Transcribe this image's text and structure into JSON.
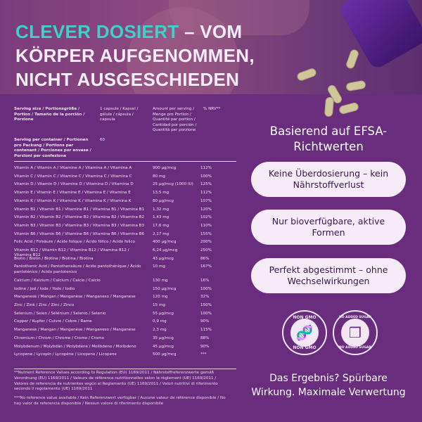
{
  "header": {
    "accent": "CLEVER DOSIERT",
    "line1_rest": " – VOM",
    "line2": "KÖRPER AUFGENOMMEN,",
    "line3": "NICHT AUSGESCHIEDEN",
    "accent_color": "#3fd0c9"
  },
  "table": {
    "serving_size_label": "Serving size / Portionsgröße / Portion / Tamaño de la porción / Porzione",
    "serving_size_value": "1 capsule / Kapsel / gélule / cápsula / capsula",
    "amount_header": "Amount per serving / Menge pro Portion / Quantité par portion / Cantidad por porción / Quantità per porzione",
    "nrv_header": "% NRV**",
    "servings_label": "Serving per container / Portionen pro Packung / Portions par contenant / Porciones por envase / Porzioni per confezione",
    "servings_value": "60",
    "rows": [
      {
        "name": "Vitamin A / Vitamin A / Vitamine A / Vitamina A / Vitamina A",
        "amount": "900 µg/mcg",
        "nrv": "112%"
      },
      {
        "name": "Vitamin C / Vitamin C / Vitamine C / Vitamina C / Vitamina C",
        "amount": "80 mg",
        "nrv": "100%"
      },
      {
        "name": "Vitamin D / Vitamin D / Vitamine D / Vitamina D / Vitamina D",
        "amount": "25 µg/mcg (1000 IU)",
        "nrv": "125%"
      },
      {
        "name": "Vitamin E / Vitamin E / Vitamine E / Vitamina E / Vitamina E",
        "amount": "13,5 mg",
        "nrv": "112%"
      },
      {
        "name": "Vitamin K / Vitamin K / Vitamine K / Vitamina K / Vitamina K",
        "amount": "80 µg/mcg",
        "nrv": "107%"
      },
      {
        "name": "Vitamin B1 / Vitamin B1 / Vitamine B1 / Vitamina B1 / Vitamina B1",
        "amount": "1,32 mg",
        "nrv": "120%"
      },
      {
        "name": "Vitamin B2 / Vitamin B2 / Vitamine B2 / Vitamina B2 / Vitamina B2",
        "amount": "1,43 mg",
        "nrv": "102%"
      },
      {
        "name": "Vitamin B3 / Vitamin B3 / Vitamine B3 / Vitamina B3 / Vitamina B3",
        "amount": "17,6 mg",
        "nrv": "110%"
      },
      {
        "name": "Vitamin B6 / Vitamin B6 / Vitamine B6 / Vitamina B6 / Vitamina B6",
        "amount": "2,17 mg",
        "nrv": "155%"
      },
      {
        "name": "Folic Acid / Folsäure / Acide folique / Ácido fólico / Acido folico",
        "amount": "400 µg/mcg",
        "nrv": "200%"
      },
      {
        "name": "Vitamin B12 / Vitamin B12 / Vitamine B12 / Vitamina B12 / Vitamina B12",
        "amount": "6,24 µg/mcg",
        "nrv": "250%"
      },
      {
        "name": "Biotin / Biotin / Biotine / Biotina / Biotina",
        "amount": "43 µg/mcg",
        "nrv": "86%"
      },
      {
        "name": "Pantothenic Acid / Pantothensäure / Acide pantothénique / Ácido pantoténico / Acido pantotenico",
        "amount": "10 mg",
        "nrv": "167%"
      },
      {
        "name": "Calcium / Kalzium / Calcium / Calcio / Calcio",
        "amount": "130 mg",
        "nrv": "16%"
      },
      {
        "name": "Iodine / Jod / Iode / Yodo / Iodio",
        "amount": "150 µg/mcg",
        "nrv": "100%"
      },
      {
        "name": "Manganese / Mangan / Manganèse / Manganeso / Manganese",
        "amount": "120 mg",
        "nrv": "32%"
      },
      {
        "name": "Zinc / Zink / Zinc / Zinc / Zinco",
        "amount": "15 mg",
        "nrv": "150%"
      },
      {
        "name": "Selenium / Selen / Sélénium / Selenio / Selenio",
        "amount": "55 µg/mcg",
        "nrv": "100%"
      },
      {
        "name": "Copper / Kupfer / Cuivre / Cobre / Rame",
        "amount": "0,9 mg",
        "nrv": "90%"
      },
      {
        "name": "Manganese / Mangan / Manganèse / Manganeso / Manganese",
        "amount": "2,3 mg",
        "nrv": "115%"
      },
      {
        "name": "Chromium / Chrom / Chrome / Cromo / Cromo",
        "amount": "35 µg/mcg",
        "nrv": "88%"
      },
      {
        "name": "Molybdenum / Molybdän / Molybdène / Molibdeno / Molibdeno",
        "amount": "45 µg/mcg",
        "nrv": "90%"
      },
      {
        "name": "Lycopene / Lycopin / Lycopène / Licopeno / Licopene",
        "amount": "500 µg/mcg",
        "nrv": "***"
      }
    ],
    "footnote1": "**Nutrient Reference Values according to Regulation (EU) 1169/2011 / Nährstoffreferenzwerte gemäß Verordnung (EU) 1169/2011 / Valeurs de référence nutritionnelles selon le règlement (UE) 1169/2011 / Valores de referencia de nutrientes según el Reglamento (UE) 1169/2011 / Valori nutritivi di riferimento secondo il regolamento (UE) 1169/2011",
    "footnote2": "***No reference value available / Kein Referenzwert verfügbar / Aucune valeur de référence disponible / No hay valor de referencia disponible / Nessun valore di riferimento disponibile"
  },
  "right": {
    "title": "Basierend auf EFSA-Richtwerten",
    "pills": [
      "Keine Überdosierung – kein Nährstoffverlust",
      "Nur bioverfügbare, aktive Formen",
      "Perfekt abgestimmt – ohne Wechselwirkungen"
    ],
    "badge1": "NON GMO",
    "badge2": "NO ADDED SUGAR",
    "bottom": "Das Ergebnis? Spürbare Wirkung. Maximale Verwertung"
  }
}
